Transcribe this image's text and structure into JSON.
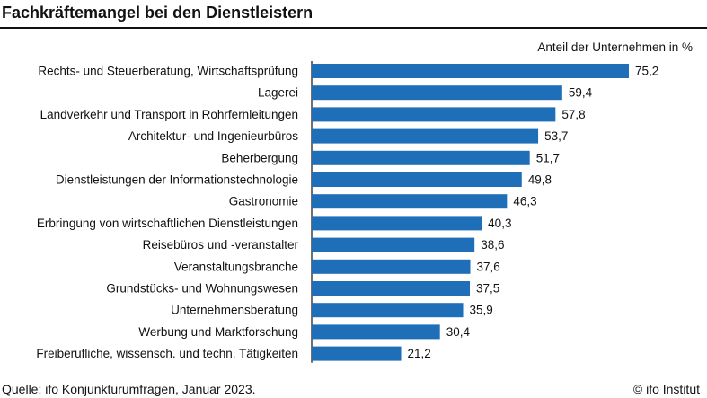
{
  "title": "Fachkräftemangel bei den Dienstleistern",
  "unit_label": "Anteil der Unternehmen in %",
  "source": "Quelle: ifo Konjunkturumfragen, Januar 2023.",
  "credit": "© ifo Institut",
  "colors": {
    "bar": "#1f6fb8",
    "axis": "#222222"
  },
  "chart_data": {
    "type": "bar",
    "orientation": "horizontal",
    "title": "Fachkräftemangel bei den Dienstleistern",
    "xlabel": "Anteil der Unternehmen in %",
    "ylabel": "",
    "xlim": [
      0,
      75.2
    ],
    "grid": false,
    "categories": [
      "Rechts- und Steuerberatung, Wirtschaftsprüfung",
      "Lagerei",
      "Landverkehr und Transport in Rohrfernleitungen",
      "Architektur- und Ingenieurbüros",
      "Beherbergung",
      "Dienstleistungen der Informationstechnologie",
      "Gastronomie",
      "Erbringung von wirtschaftlichen Dienstleistungen",
      "Reisebüros und -veranstalter",
      "Veranstaltungsbranche",
      "Grundstücks- und Wohnungswesen",
      "Unternehmensberatung",
      "Werbung und Marktforschung",
      "Freiberufliche, wissensch. und techn. Tätigkeiten"
    ],
    "values": [
      75.2,
      59.4,
      57.8,
      53.7,
      51.7,
      49.8,
      46.3,
      40.3,
      38.6,
      37.6,
      37.5,
      35.9,
      30.4,
      21.2
    ],
    "value_labels": [
      "75,2",
      "59,4",
      "57,8",
      "53,7",
      "51,7",
      "49,8",
      "46,3",
      "40,3",
      "38,6",
      "37,6",
      "37,5",
      "35,9",
      "30,4",
      "21,2"
    ]
  }
}
